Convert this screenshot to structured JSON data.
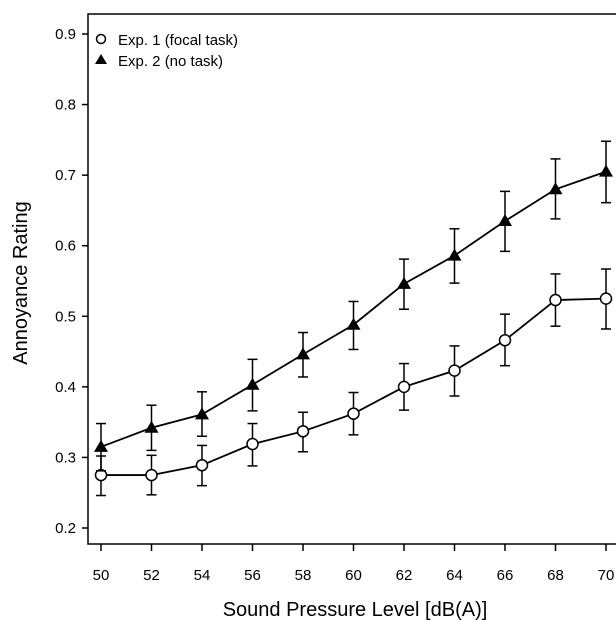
{
  "chart_data": {
    "type": "line",
    "title": "",
    "xlabel": "Sound Pressure Level [dB(A)]",
    "ylabel": "Annoyance Rating",
    "x": [
      50,
      52,
      54,
      56,
      58,
      60,
      62,
      64,
      66,
      68,
      70
    ],
    "x_tick_labels": [
      "50",
      "52",
      "54",
      "56",
      "58",
      "60",
      "62",
      "64",
      "66",
      "68",
      "70"
    ],
    "y_ticks": [
      0.2,
      0.3,
      0.4,
      0.5,
      0.6,
      0.7,
      0.8,
      0.9
    ],
    "y_tick_labels": [
      "0.2",
      "0.3",
      "0.4",
      "0.5",
      "0.6",
      "0.7",
      "0.8",
      "0.9"
    ],
    "ylim": [
      0.2,
      0.9
    ],
    "grid": false,
    "legend_position": "top-left",
    "series": [
      {
        "name": "Exp. 1 (focal task)",
        "marker": "open-circle",
        "values": [
          0.275,
          0.275,
          0.289,
          0.319,
          0.337,
          0.362,
          0.4,
          0.423,
          0.466,
          0.523,
          0.525
        ],
        "err_low": [
          0.029,
          0.028,
          0.029,
          0.031,
          0.029,
          0.03,
          0.033,
          0.036,
          0.036,
          0.037,
          0.043
        ],
        "err_high": [
          0.027,
          0.028,
          0.028,
          0.029,
          0.027,
          0.03,
          0.033,
          0.035,
          0.037,
          0.037,
          0.042
        ]
      },
      {
        "name": "Exp. 2 (no task)",
        "marker": "filled-triangle",
        "values": [
          0.315,
          0.342,
          0.361,
          0.403,
          0.446,
          0.488,
          0.546,
          0.586,
          0.635,
          0.68,
          0.705
        ],
        "err_low": [
          0.034,
          0.032,
          0.031,
          0.037,
          0.032,
          0.035,
          0.036,
          0.039,
          0.043,
          0.042,
          0.044
        ],
        "err_high": [
          0.033,
          0.032,
          0.032,
          0.036,
          0.031,
          0.033,
          0.035,
          0.038,
          0.042,
          0.043,
          0.043
        ]
      }
    ]
  },
  "colors": {
    "line": "#000000",
    "open_marker_fill": "#ffffff",
    "background": "#ffffff"
  }
}
